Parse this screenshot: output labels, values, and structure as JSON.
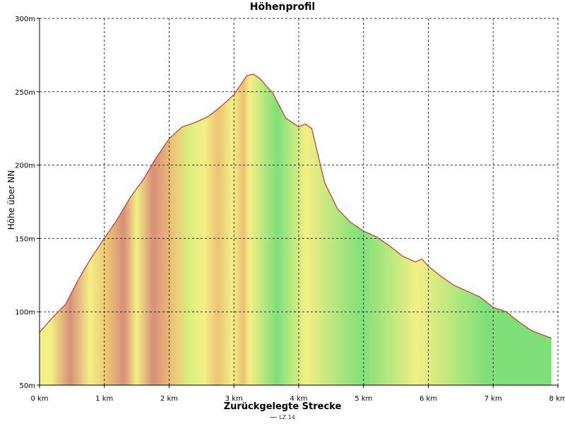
{
  "chart_data": {
    "type": "area",
    "title": "Höhenprofil",
    "xlabel": "Zurückgelegte Strecke",
    "ylabel": "Höhe über NN",
    "xlim": [
      0,
      8
    ],
    "ylim": [
      50,
      300
    ],
    "x_ticks": [
      0,
      1,
      2,
      3,
      4,
      5,
      6,
      7,
      8
    ],
    "x_tick_labels": [
      "0 km",
      "1 km",
      "2 km",
      "3 km",
      "4 km",
      "5 km",
      "6 km",
      "7 km",
      "8 km"
    ],
    "y_ticks": [
      50,
      100,
      150,
      200,
      250,
      300
    ],
    "y_tick_labels": [
      "50m",
      "100m",
      "150m",
      "200m",
      "250m",
      "300m"
    ],
    "grid": true,
    "legend_position": "bottom",
    "series": [
      {
        "name": "LZ 14",
        "color": "#cc3333",
        "x": [
          0,
          0.2,
          0.4,
          0.6,
          0.8,
          1.0,
          1.2,
          1.4,
          1.6,
          1.8,
          2.0,
          2.2,
          2.4,
          2.6,
          2.8,
          3.0,
          3.2,
          3.3,
          3.4,
          3.6,
          3.8,
          4.0,
          4.1,
          4.2,
          4.4,
          4.6,
          4.8,
          5.0,
          5.2,
          5.4,
          5.6,
          5.8,
          5.9,
          6.0,
          6.2,
          6.4,
          6.6,
          6.8,
          7.0,
          7.2,
          7.4,
          7.6,
          7.9
        ],
        "values": [
          86,
          96,
          105,
          122,
          137,
          150,
          163,
          178,
          190,
          205,
          218,
          226,
          229,
          233,
          240,
          248,
          261,
          262,
          259,
          249,
          232,
          226,
          228,
          225,
          188,
          170,
          161,
          155,
          151,
          145,
          138,
          134,
          136,
          131,
          124,
          118,
          114,
          110,
          103,
          100,
          93,
          87,
          82
        ]
      }
    ],
    "gradient_bands": [
      {
        "from": 0.0,
        "to": 0.35,
        "color": "yellow"
      },
      {
        "from": 0.35,
        "to": 0.6,
        "color": "red"
      },
      {
        "from": 0.6,
        "to": 0.95,
        "color": "yellow"
      },
      {
        "from": 0.95,
        "to": 1.15,
        "color": "orange"
      },
      {
        "from": 1.15,
        "to": 1.45,
        "color": "red"
      },
      {
        "from": 1.45,
        "to": 1.55,
        "color": "yellow"
      },
      {
        "from": 1.55,
        "to": 1.95,
        "color": "red"
      },
      {
        "from": 1.95,
        "to": 2.15,
        "color": "orange"
      },
      {
        "from": 2.15,
        "to": 2.45,
        "color": "lightgreen"
      },
      {
        "from": 2.45,
        "to": 2.65,
        "color": "yellow"
      },
      {
        "from": 2.65,
        "to": 2.85,
        "color": "orange"
      },
      {
        "from": 2.85,
        "to": 3.1,
        "color": "yellow"
      },
      {
        "from": 3.1,
        "to": 3.2,
        "color": "orange"
      },
      {
        "from": 3.2,
        "to": 3.28,
        "color": "yellow"
      },
      {
        "from": 3.28,
        "to": 4.05,
        "color": "green"
      },
      {
        "from": 4.05,
        "to": 4.17,
        "color": "yellow"
      },
      {
        "from": 4.17,
        "to": 5.78,
        "color": "green"
      },
      {
        "from": 5.78,
        "to": 5.88,
        "color": "yellow"
      },
      {
        "from": 5.88,
        "to": 7.9,
        "color": "green"
      }
    ],
    "band_colors": {
      "green": "#7fe07a",
      "lightgreen": "#d9ef80",
      "yellow": "#f3ef85",
      "orange": "#ecc373",
      "red": "#d88f7a"
    }
  }
}
